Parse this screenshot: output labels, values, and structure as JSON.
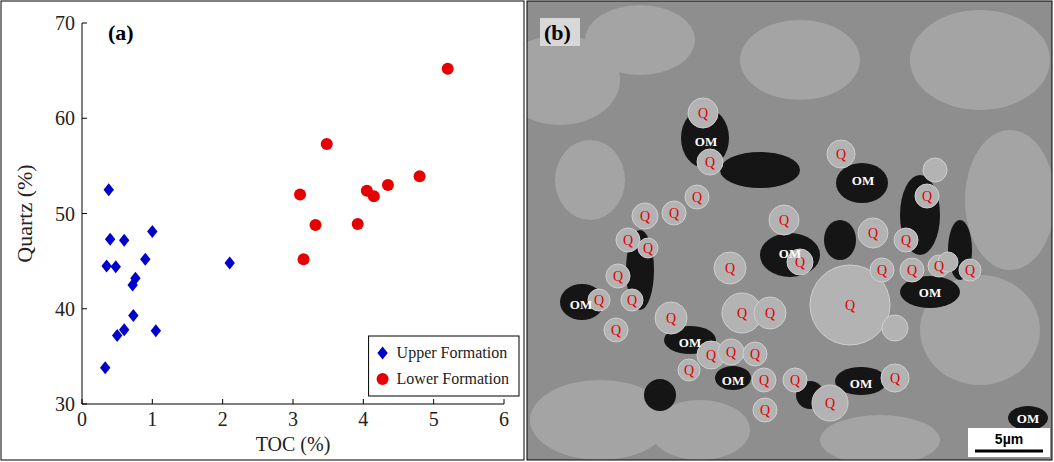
{
  "chart_data": {
    "type": "scatter",
    "panel_label": "(a)",
    "xlabel": "TOC (%)",
    "ylabel": "Quartz (%)",
    "xlim": [
      0,
      6
    ],
    "ylim": [
      30,
      70
    ],
    "xticks": [
      0,
      1,
      2,
      3,
      4,
      5,
      6
    ],
    "yticks": [
      30,
      40,
      50,
      60,
      70
    ],
    "grid": false,
    "legend": "lower right",
    "series": [
      {
        "name": "Upper Formation",
        "color": "#0000cc",
        "marker": "diamond",
        "x": [
          0.33,
          0.38,
          0.4,
          0.35,
          0.48,
          0.5,
          0.6,
          0.6,
          0.72,
          0.76,
          0.73,
          0.9,
          1.0,
          1.05,
          2.1
        ],
        "values": [
          33.8,
          52.5,
          47.3,
          44.5,
          44.4,
          37.2,
          47.2,
          37.8,
          42.5,
          43.2,
          39.3,
          45.2,
          48.1,
          37.7,
          44.8
        ]
      },
      {
        "name": "Lower Formation",
        "color": "#e60000",
        "marker": "circle",
        "x": [
          3.1,
          3.15,
          3.32,
          3.48,
          3.92,
          4.05,
          4.15,
          4.35,
          4.8,
          5.2
        ],
        "values": [
          52.0,
          45.2,
          48.8,
          57.3,
          48.9,
          52.4,
          51.8,
          53.0,
          53.9,
          65.2
        ]
      }
    ]
  },
  "image": {
    "panel_label": "(b)",
    "labels": [
      "Q",
      "OM",
      "Q",
      "Q",
      "Q",
      "Q",
      "Q",
      "Q",
      "Q",
      "Q",
      "Q",
      "Q",
      "OM",
      "Q",
      "Q",
      "Q",
      "OM",
      "Q",
      "Q",
      "Q",
      "Q",
      "Q",
      "Q",
      "Q",
      "Q",
      "Q",
      "OM",
      "Q",
      "Q",
      "OM",
      "Q",
      "Q",
      "Q",
      "Q",
      "Q",
      "Q",
      "Q",
      "Q",
      "OM",
      "Q",
      "OM",
      "OM",
      "Q",
      "OM"
    ],
    "scale_bar": "5µm"
  }
}
